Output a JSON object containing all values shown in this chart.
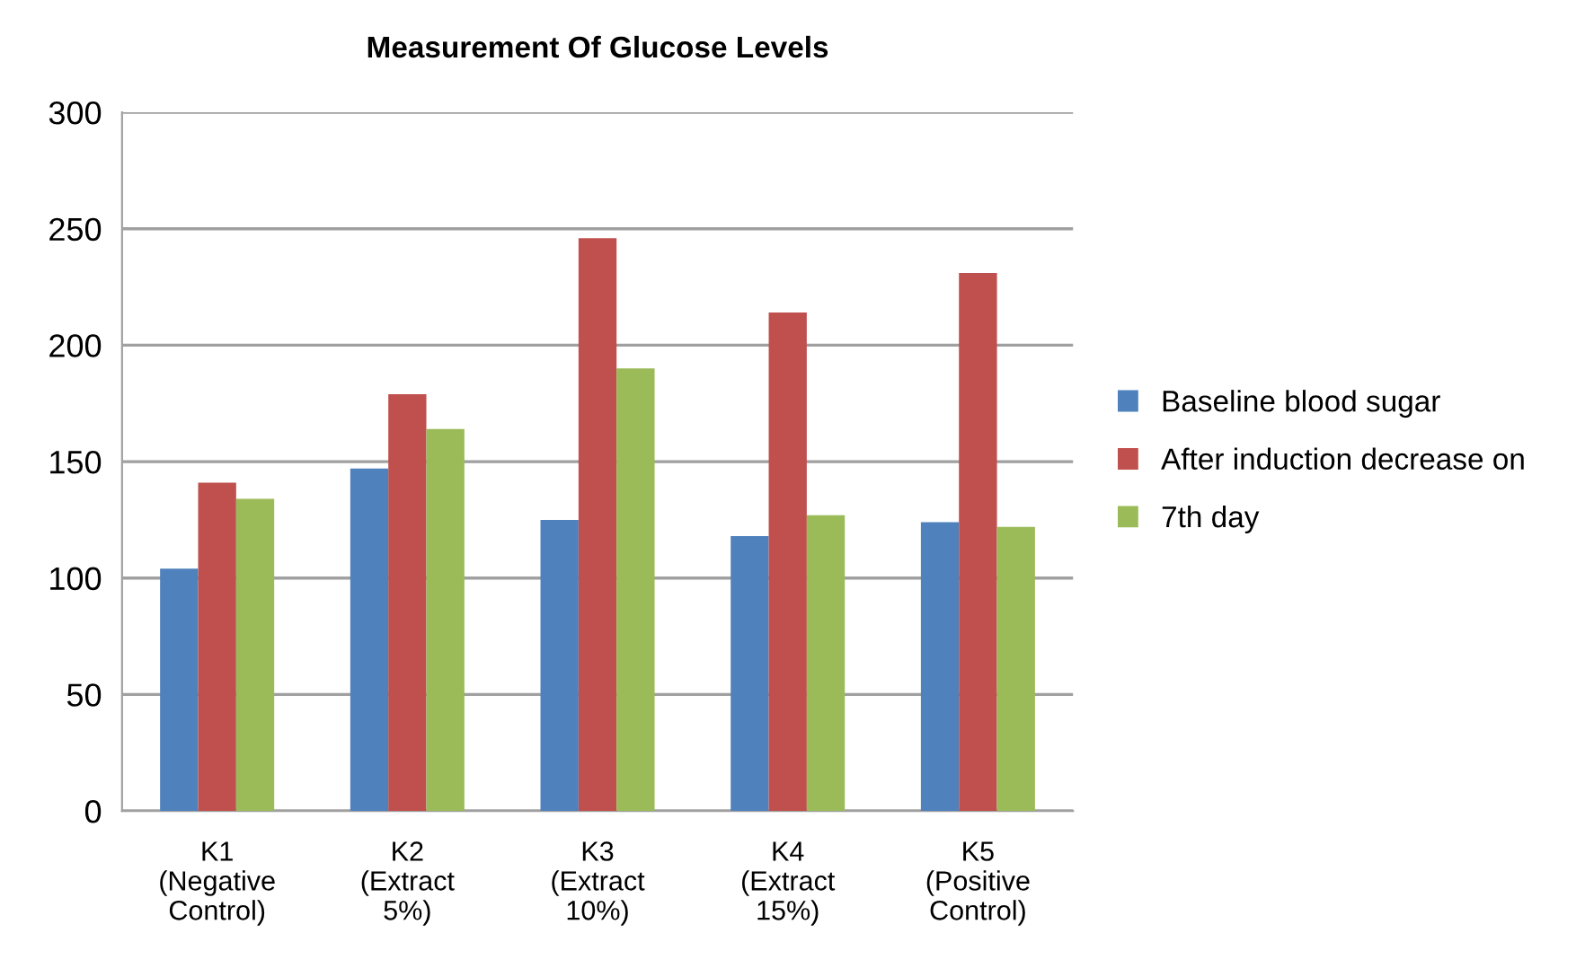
{
  "chart_data": {
    "type": "bar",
    "title": "Measurement Of Glucose Levels",
    "categories": [
      "K1\n(Negative\nControl)",
      "K2\n(Extract\n5%)",
      "K3\n(Extract\n10%)",
      "K4\n(Extract\n15%)",
      "K5\n(Positive\nControl)"
    ],
    "series": [
      {
        "name": "Baseline blood sugar",
        "color": "#4f81bd",
        "values": [
          104,
          147,
          125,
          118,
          124
        ]
      },
      {
        "name": "After induction decrease on",
        "color": "#c0504d",
        "values": [
          141,
          179,
          246,
          214,
          231
        ]
      },
      {
        "name": "7th day",
        "color": "#9bbb59",
        "values": [
          134,
          164,
          190,
          127,
          122
        ]
      }
    ],
    "ylim": [
      0,
      300
    ],
    "yticks": [
      0,
      50,
      100,
      150,
      200,
      250,
      300
    ],
    "grid": "y",
    "legend": "right"
  }
}
